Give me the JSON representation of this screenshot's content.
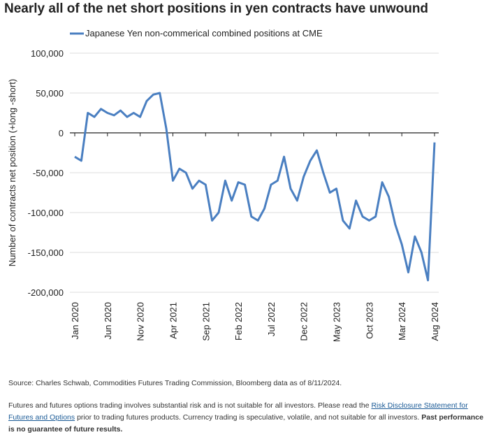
{
  "chart_data": {
    "type": "line",
    "title": "Nearly all of the net short positions in yen contracts have unwound",
    "ylabel": "Number of contracts net position (+long -short)",
    "categories": [
      "Jan 2020",
      null,
      null,
      null,
      null,
      "Jun 2020",
      null,
      null,
      null,
      null,
      "Nov 2020",
      null,
      null,
      null,
      null,
      "Apr 2021",
      null,
      null,
      null,
      null,
      "Sep 2021",
      null,
      null,
      null,
      null,
      "Feb 2022",
      null,
      null,
      null,
      null,
      "Jul 2022",
      null,
      null,
      null,
      null,
      "Dec 2022",
      null,
      null,
      null,
      null,
      "May 2023",
      null,
      null,
      null,
      null,
      "Oct 2023",
      null,
      null,
      null,
      null,
      "Mar 2024",
      null,
      null,
      null,
      null,
      "Aug 2024"
    ],
    "series": [
      {
        "name": "Japanese Yen non-commerical combined positions at CME",
        "color": "#4a7fc1",
        "values": [
          -30000,
          -35000,
          25000,
          20000,
          30000,
          25000,
          22000,
          28000,
          20000,
          25000,
          20000,
          40000,
          48000,
          50000,
          5000,
          -60000,
          -45000,
          -50000,
          -70000,
          -60000,
          -65000,
          -110000,
          -100000,
          -60000,
          -85000,
          -62000,
          -65000,
          -105000,
          -110000,
          -95000,
          -65000,
          -60000,
          -30000,
          -70000,
          -85000,
          -55000,
          -35000,
          -22000,
          -50000,
          -75000,
          -70000,
          -110000,
          -120000,
          -85000,
          -105000,
          -110000,
          -105000,
          -62000,
          -80000,
          -115000,
          -140000,
          -175000,
          -130000,
          -150000,
          -185000,
          -12000
        ]
      }
    ],
    "ylim": [
      -200000,
      100000
    ],
    "yticks": [
      {
        "value": -200000,
        "label": "-200,000"
      },
      {
        "value": -150000,
        "label": "-150,000"
      },
      {
        "value": -100000,
        "label": "-100,000"
      },
      {
        "value": -50000,
        "label": "-50,000"
      },
      0,
      {
        "value": 50000,
        "label": "50,000"
      },
      {
        "value": 100000,
        "label": "100,000"
      }
    ],
    "grid": true
  },
  "source": "Source: Charles Schwab, Commodities Futures Trading Commission, Bloomberg data as of 8/11/2024.",
  "disclaimer": {
    "before": "Futures and futures options trading involves substantial risk and is not suitable for all investors. Please read the",
    "link": "Risk Disclosure Statement for Futures and Options",
    "after": "prior to trading futures products. Currency trading is speculative, volatile, and not suitable for all investors.",
    "bold": "Past performance is no guarantee of future results."
  }
}
